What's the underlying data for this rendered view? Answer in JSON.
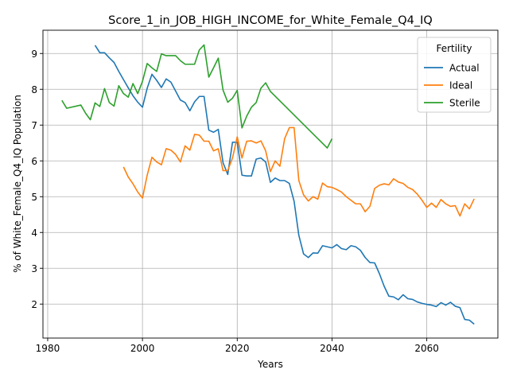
{
  "chart_data": {
    "type": "line",
    "title": "Score_1_in_JOB_HIGH_INCOME_for_White_Female_Q4_IQ",
    "xlabel": "Years",
    "ylabel": "% of White_Female_Q4_IQ Population",
    "xlim": [
      1979,
      2075
    ],
    "ylim": [
      1.05,
      9.65
    ],
    "xticks": [
      1980,
      2000,
      2020,
      2040,
      2060
    ],
    "yticks": [
      2,
      3,
      4,
      5,
      6,
      7,
      8,
      9
    ],
    "grid": true,
    "legend": {
      "title": "Fertility",
      "placement": "top-right"
    },
    "series": [
      {
        "name": "Actual",
        "color": "#1f77b4",
        "points": [
          [
            1990,
            9.23
          ],
          [
            1991,
            9.02
          ],
          [
            1992,
            9.02
          ],
          [
            1993,
            8.88
          ],
          [
            1994,
            8.75
          ],
          [
            1995,
            8.5
          ],
          [
            1996,
            8.27
          ],
          [
            1997,
            8.04
          ],
          [
            1998,
            7.82
          ],
          [
            1999,
            7.64
          ],
          [
            2000,
            7.5
          ],
          [
            2001,
            8.03
          ],
          [
            2002,
            8.42
          ],
          [
            2003,
            8.25
          ],
          [
            2004,
            8.05
          ],
          [
            2005,
            8.29
          ],
          [
            2006,
            8.2
          ],
          [
            2007,
            7.95
          ],
          [
            2008,
            7.7
          ],
          [
            2009,
            7.63
          ],
          [
            2010,
            7.4
          ],
          [
            2011,
            7.65
          ],
          [
            2012,
            7.8
          ],
          [
            2013,
            7.8
          ],
          [
            2014,
            6.86
          ],
          [
            2015,
            6.8
          ],
          [
            2016,
            6.88
          ],
          [
            2017,
            5.95
          ],
          [
            2018,
            5.62
          ],
          [
            2019,
            6.52
          ],
          [
            2020,
            6.52
          ],
          [
            2021,
            5.6
          ],
          [
            2022,
            5.58
          ],
          [
            2023,
            5.58
          ],
          [
            2024,
            6.05
          ],
          [
            2025,
            6.08
          ],
          [
            2026,
            5.97
          ],
          [
            2027,
            5.4
          ],
          [
            2028,
            5.52
          ],
          [
            2029,
            5.45
          ],
          [
            2030,
            5.45
          ],
          [
            2031,
            5.37
          ],
          [
            2032,
            4.87
          ],
          [
            2033,
            3.92
          ],
          [
            2034,
            3.4
          ],
          [
            2035,
            3.3
          ],
          [
            2036,
            3.43
          ],
          [
            2037,
            3.42
          ],
          [
            2038,
            3.63
          ],
          [
            2039,
            3.6
          ],
          [
            2040,
            3.57
          ],
          [
            2041,
            3.66
          ],
          [
            2042,
            3.55
          ],
          [
            2043,
            3.52
          ],
          [
            2044,
            3.63
          ],
          [
            2045,
            3.6
          ],
          [
            2046,
            3.5
          ],
          [
            2047,
            3.3
          ],
          [
            2048,
            3.16
          ],
          [
            2049,
            3.15
          ],
          [
            2050,
            2.85
          ],
          [
            2051,
            2.5
          ],
          [
            2052,
            2.22
          ],
          [
            2053,
            2.2
          ],
          [
            2054,
            2.12
          ],
          [
            2055,
            2.26
          ],
          [
            2056,
            2.15
          ],
          [
            2057,
            2.13
          ],
          [
            2058,
            2.06
          ],
          [
            2059,
            2.02
          ],
          [
            2060,
            1.99
          ],
          [
            2061,
            1.97
          ],
          [
            2062,
            1.93
          ],
          [
            2063,
            2.04
          ],
          [
            2064,
            1.97
          ],
          [
            2065,
            2.05
          ],
          [
            2066,
            1.94
          ],
          [
            2067,
            1.9
          ],
          [
            2068,
            1.57
          ],
          [
            2069,
            1.55
          ],
          [
            2070,
            1.44
          ]
        ]
      },
      {
        "name": "Ideal",
        "color": "#ff7f0e",
        "points": [
          [
            1996,
            5.83
          ],
          [
            1997,
            5.55
          ],
          [
            1998,
            5.36
          ],
          [
            1999,
            5.13
          ],
          [
            2000,
            4.96
          ],
          [
            2001,
            5.6
          ],
          [
            2002,
            6.1
          ],
          [
            2003,
            5.97
          ],
          [
            2004,
            5.89
          ],
          [
            2005,
            6.34
          ],
          [
            2006,
            6.3
          ],
          [
            2007,
            6.18
          ],
          [
            2008,
            5.97
          ],
          [
            2009,
            6.42
          ],
          [
            2010,
            6.3
          ],
          [
            2011,
            6.74
          ],
          [
            2012,
            6.72
          ],
          [
            2013,
            6.55
          ],
          [
            2014,
            6.55
          ],
          [
            2015,
            6.28
          ],
          [
            2016,
            6.34
          ],
          [
            2017,
            5.73
          ],
          [
            2018,
            5.73
          ],
          [
            2019,
            6.08
          ],
          [
            2020,
            6.67
          ],
          [
            2021,
            6.08
          ],
          [
            2022,
            6.55
          ],
          [
            2023,
            6.56
          ],
          [
            2024,
            6.5
          ],
          [
            2025,
            6.56
          ],
          [
            2026,
            6.28
          ],
          [
            2027,
            5.7
          ],
          [
            2028,
            6.0
          ],
          [
            2029,
            5.85
          ],
          [
            2030,
            6.62
          ],
          [
            2031,
            6.93
          ],
          [
            2032,
            6.93
          ],
          [
            2033,
            5.45
          ],
          [
            2034,
            5.05
          ],
          [
            2035,
            4.88
          ],
          [
            2036,
            5.0
          ],
          [
            2037,
            4.93
          ],
          [
            2038,
            5.38
          ],
          [
            2039,
            5.28
          ],
          [
            2040,
            5.26
          ],
          [
            2041,
            5.2
          ],
          [
            2042,
            5.13
          ],
          [
            2043,
            5.0
          ],
          [
            2044,
            4.9
          ],
          [
            2045,
            4.8
          ],
          [
            2046,
            4.8
          ],
          [
            2047,
            4.58
          ],
          [
            2048,
            4.73
          ],
          [
            2049,
            5.23
          ],
          [
            2050,
            5.32
          ],
          [
            2051,
            5.36
          ],
          [
            2052,
            5.33
          ],
          [
            2053,
            5.5
          ],
          [
            2054,
            5.41
          ],
          [
            2055,
            5.37
          ],
          [
            2056,
            5.26
          ],
          [
            2057,
            5.2
          ],
          [
            2058,
            5.07
          ],
          [
            2059,
            4.9
          ],
          [
            2060,
            4.7
          ],
          [
            2061,
            4.82
          ],
          [
            2062,
            4.7
          ],
          [
            2063,
            4.92
          ],
          [
            2064,
            4.8
          ],
          [
            2065,
            4.73
          ],
          [
            2066,
            4.75
          ],
          [
            2067,
            4.46
          ],
          [
            2068,
            4.8
          ],
          [
            2069,
            4.66
          ],
          [
            2070,
            4.94
          ]
        ]
      },
      {
        "name": "Sterile",
        "color": "#2ca02c",
        "points": [
          [
            1983,
            7.69
          ],
          [
            1984,
            7.47
          ],
          [
            1987,
            7.56
          ],
          [
            1988,
            7.33
          ],
          [
            1989,
            7.15
          ],
          [
            1990,
            7.62
          ],
          [
            1991,
            7.52
          ],
          [
            1992,
            8.02
          ],
          [
            1993,
            7.63
          ],
          [
            1994,
            7.53
          ],
          [
            1995,
            8.1
          ],
          [
            1996,
            7.88
          ],
          [
            1997,
            7.78
          ],
          [
            1998,
            8.16
          ],
          [
            1999,
            7.88
          ],
          [
            2000,
            8.22
          ],
          [
            2001,
            8.72
          ],
          [
            2002,
            8.6
          ],
          [
            2003,
            8.5
          ],
          [
            2004,
            8.99
          ],
          [
            2005,
            8.94
          ],
          [
            2006,
            8.94
          ],
          [
            2007,
            8.94
          ],
          [
            2008,
            8.8
          ],
          [
            2009,
            8.7
          ],
          [
            2010,
            8.7
          ],
          [
            2011,
            8.7
          ],
          [
            2012,
            9.1
          ],
          [
            2013,
            9.24
          ],
          [
            2014,
            8.34
          ],
          [
            2015,
            8.6
          ],
          [
            2016,
            8.87
          ],
          [
            2017,
            7.98
          ],
          [
            2018,
            7.64
          ],
          [
            2019,
            7.75
          ],
          [
            2020,
            7.97
          ],
          [
            2021,
            6.92
          ],
          [
            2022,
            7.25
          ],
          [
            2023,
            7.5
          ],
          [
            2024,
            7.63
          ],
          [
            2025,
            8.03
          ],
          [
            2026,
            8.18
          ],
          [
            2027,
            7.94
          ],
          [
            2039,
            6.36
          ],
          [
            2040,
            6.62
          ]
        ]
      }
    ]
  }
}
